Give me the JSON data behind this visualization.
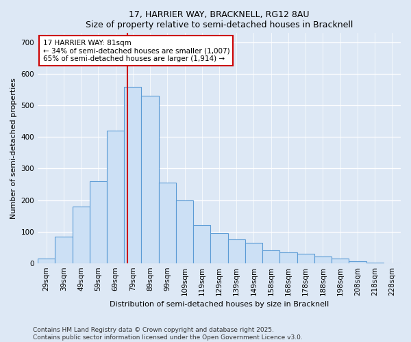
{
  "title1": "17, HARRIER WAY, BRACKNELL, RG12 8AU",
  "title2": "Size of property relative to semi-detached houses in Bracknell",
  "xlabel": "Distribution of semi-detached houses by size in Bracknell",
  "ylabel": "Number of semi-detached properties",
  "bin_labels": [
    "29sqm",
    "39sqm",
    "49sqm",
    "59sqm",
    "69sqm",
    "79sqm",
    "89sqm",
    "99sqm",
    "109sqm",
    "119sqm",
    "129sqm",
    "139sqm",
    "149sqm",
    "158sqm",
    "168sqm",
    "178sqm",
    "188sqm",
    "198sqm",
    "208sqm",
    "218sqm",
    "228sqm"
  ],
  "bar_heights": [
    15,
    85,
    180,
    260,
    420,
    560,
    530,
    255,
    200,
    120,
    95,
    75,
    65,
    40,
    35,
    30,
    20,
    15,
    5,
    2,
    0
  ],
  "bar_color": "#cce0f5",
  "bar_edge_color": "#5b9bd5",
  "vline_color": "#cc0000",
  "annotation_text": "17 HARRIER WAY: 81sqm\n← 34% of semi-detached houses are smaller (1,007)\n65% of semi-detached houses are larger (1,914) →",
  "annotation_box_facecolor": "white",
  "annotation_box_edgecolor": "#cc0000",
  "ylim": [
    0,
    730
  ],
  "yticks": [
    0,
    100,
    200,
    300,
    400,
    500,
    600,
    700
  ],
  "footer1": "Contains HM Land Registry data © Crown copyright and database right 2025.",
  "footer2": "Contains public sector information licensed under the Open Government Licence v3.0.",
  "bg_color": "#ddeeff",
  "plot_bg_color": "#ddeeff",
  "title_fontsize": 9,
  "axis_label_fontsize": 8,
  "tick_fontsize": 7.5,
  "footer_fontsize": 6.5
}
